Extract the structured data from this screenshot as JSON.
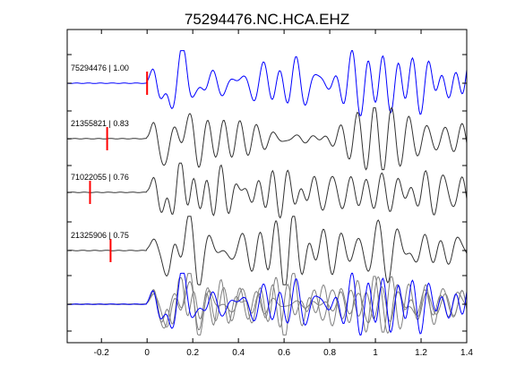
{
  "chart_data": {
    "type": "line",
    "title": "75294476.NC.HCA.EHZ",
    "xlabel": "",
    "ylabel": "",
    "xlim": [
      -0.35,
      1.4
    ],
    "x_ticks": [
      -0.2,
      0,
      0.2,
      0.4,
      0.6,
      0.8,
      1,
      1.2,
      1.4
    ],
    "x_tick_labels": [
      "-0.2",
      "0",
      "0.2",
      "0.4",
      "0.6",
      "0.8",
      "1",
      "1.2",
      "1.4"
    ],
    "grid": false,
    "legend": "none",
    "colors": {
      "master": "#0000ff",
      "trace": "#333333",
      "overlay": "#808080",
      "pick": "#ff0000",
      "axes": "#000000"
    },
    "series": [
      {
        "label": "75294476 | 1.00",
        "role": "master",
        "pick_time": 0.0,
        "amplitude": 1.0,
        "seed": 1
      },
      {
        "label": "21355821 | 0.83",
        "role": "trace",
        "pick_time": -0.175,
        "amplitude": 0.95,
        "seed": 2
      },
      {
        "label": "71022055 | 0.76",
        "role": "trace",
        "pick_time": -0.25,
        "amplitude": 0.9,
        "seed": 3
      },
      {
        "label": "21325906 | 0.75",
        "role": "trace",
        "pick_time": -0.16,
        "amplitude": 1.05,
        "seed": 4
      }
    ],
    "stack_row": {
      "role": "overlay"
    }
  }
}
